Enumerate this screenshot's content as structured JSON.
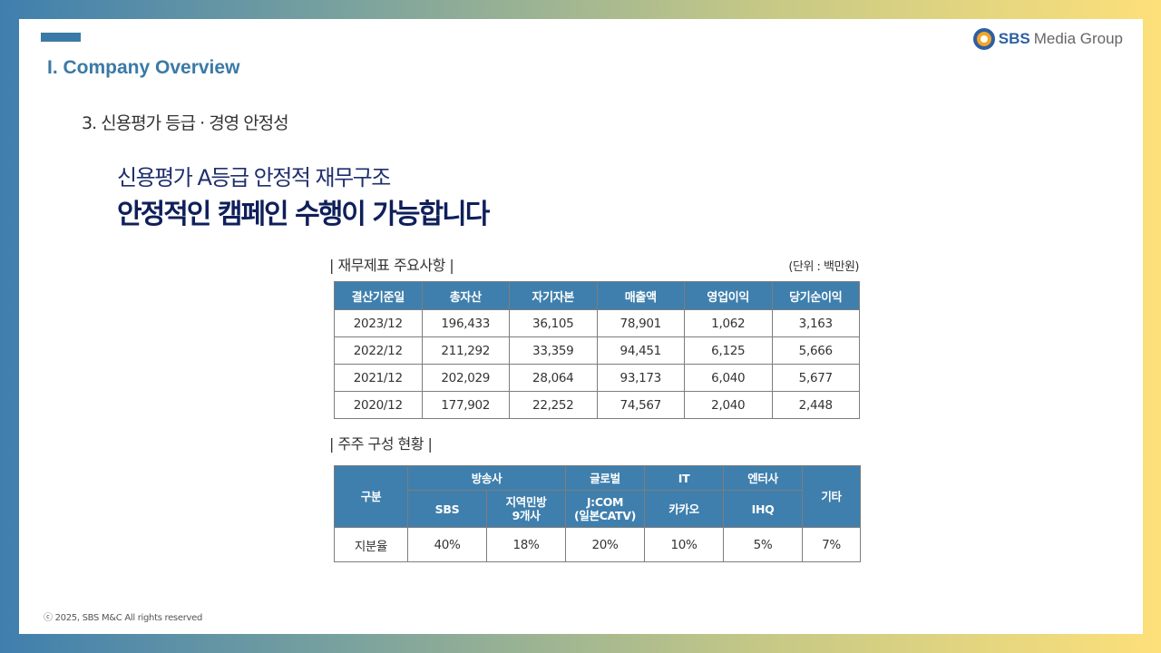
{
  "header": {
    "section_title": "I. Company Overview",
    "logo_brand": "SBS",
    "logo_suffix": "Media Group"
  },
  "subsection": "3. 신용평가 등급 · 경영 안정성",
  "headline": {
    "line1": "신용평가 A등급 안정적 재무구조",
    "line2": "안정적인 캠페인 수행이 가능합니다"
  },
  "financial": {
    "caption": "| 재무제표 주요사항 |",
    "unit": "(단위 : 백만원)",
    "columns": [
      "결산기준일",
      "총자산",
      "자기자본",
      "매출액",
      "영업이익",
      "당기순이익"
    ],
    "rows": [
      [
        "2023/12",
        "196,433",
        "36,105",
        "78,901",
        "1,062",
        "3,163"
      ],
      [
        "2022/12",
        "211,292",
        "33,359",
        "94,451",
        "6,125",
        "5,666"
      ],
      [
        "2021/12",
        "202,029",
        "28,064",
        "93,173",
        "6,040",
        "5,677"
      ],
      [
        "2020/12",
        "177,902",
        "22,252",
        "74,567",
        "2,040",
        "2,448"
      ]
    ]
  },
  "shareholders": {
    "caption": "| 주주 구성 현황 |",
    "label_col": "구분",
    "group_broadcast": "방송사",
    "group_global": "글로벌",
    "group_it": "IT",
    "group_entertainment": "엔터사",
    "other": "기타",
    "sbs": "SBS",
    "regional_line1": "지역민방",
    "regional_line2": "9개사",
    "jcom_line1": "J:COM",
    "jcom_line2": "(일본CATV)",
    "kakao": "카카오",
    "ihq": "IHQ",
    "row_label": "지분율",
    "values": [
      "40%",
      "18%",
      "20%",
      "10%",
      "5%",
      "7%"
    ]
  },
  "footer": "ⓒ 2025, SBS M&C All rights reserved"
}
